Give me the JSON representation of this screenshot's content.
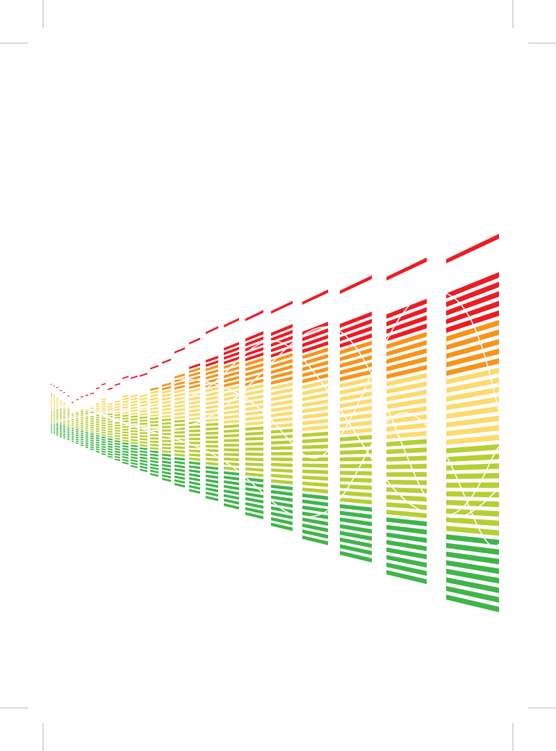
{
  "artwork": {
    "subject": "equalizer-bars-perspective",
    "background_color": "#ffffff",
    "crop_mark_color": "#9a9a9a",
    "wave_line_color": "#ffffff",
    "palette": {
      "red": "#ec1c24",
      "orange": "#f7941d",
      "yellow": "#fbdb6e",
      "lime": "#b5cf34",
      "green": "#3fb54a"
    },
    "color_order_top_to_bottom": [
      "red",
      "orange",
      "yellow",
      "lime",
      "green"
    ]
  }
}
